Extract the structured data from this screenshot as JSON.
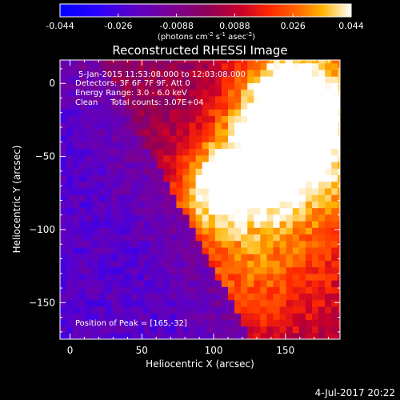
{
  "chart_data": {
    "type": "heatmap",
    "title": "Reconstructed RHESSI Image",
    "xlabel": "Heliocentric X (arcsec)",
    "ylabel": "Heliocentric Y (arcsec)",
    "xlim": [
      -7,
      188
    ],
    "ylim": [
      -175,
      16
    ],
    "xticks": [
      0,
      50,
      100,
      150
    ],
    "yticks": [
      0,
      -50,
      -100,
      -150
    ],
    "colorbar": {
      "ticks": [
        "-0.044",
        "-0.026",
        "-0.0088",
        "0.0088",
        "0.026",
        "0.044"
      ],
      "min": -0.044,
      "max": 0.044,
      "units_prefix": "(photons cm",
      "units_exp1": "-2",
      "units_mid1": " s",
      "units_exp2": "-1",
      "units_mid2": " asec",
      "units_exp3": "-2",
      "units_suffix": ")"
    },
    "annotations": [
      "5-Jan-2015 11:53:08.000 to 12:03:08.000",
      "Detectors: 3F 6F 7F 9F, Att 0",
      "Energy Range: 3.0 - 6.0 keV",
      "Clean     Total counts: 3.07E+04"
    ],
    "peak_label": "Position of Peak = [165,-32]",
    "peak": [
      165,
      -32
    ],
    "sources": [
      {
        "x": 165,
        "y": -32,
        "amp": 0.044,
        "sigma": 38
      },
      {
        "x": 98,
        "y": -75,
        "amp": 0.03,
        "sigma": 22
      },
      {
        "x": 130,
        "y": -60,
        "amp": 0.022,
        "sigma": 30
      },
      {
        "x": 150,
        "y": -5,
        "amp": 0.026,
        "sigma": 25
      },
      {
        "x": 150,
        "y": -120,
        "amp": 0.018,
        "sigma": 45
      },
      {
        "x": 110,
        "y": -140,
        "amp": 0.012,
        "sigma": 30
      }
    ]
  },
  "footer_date": "4-Jul-2017 20:22"
}
